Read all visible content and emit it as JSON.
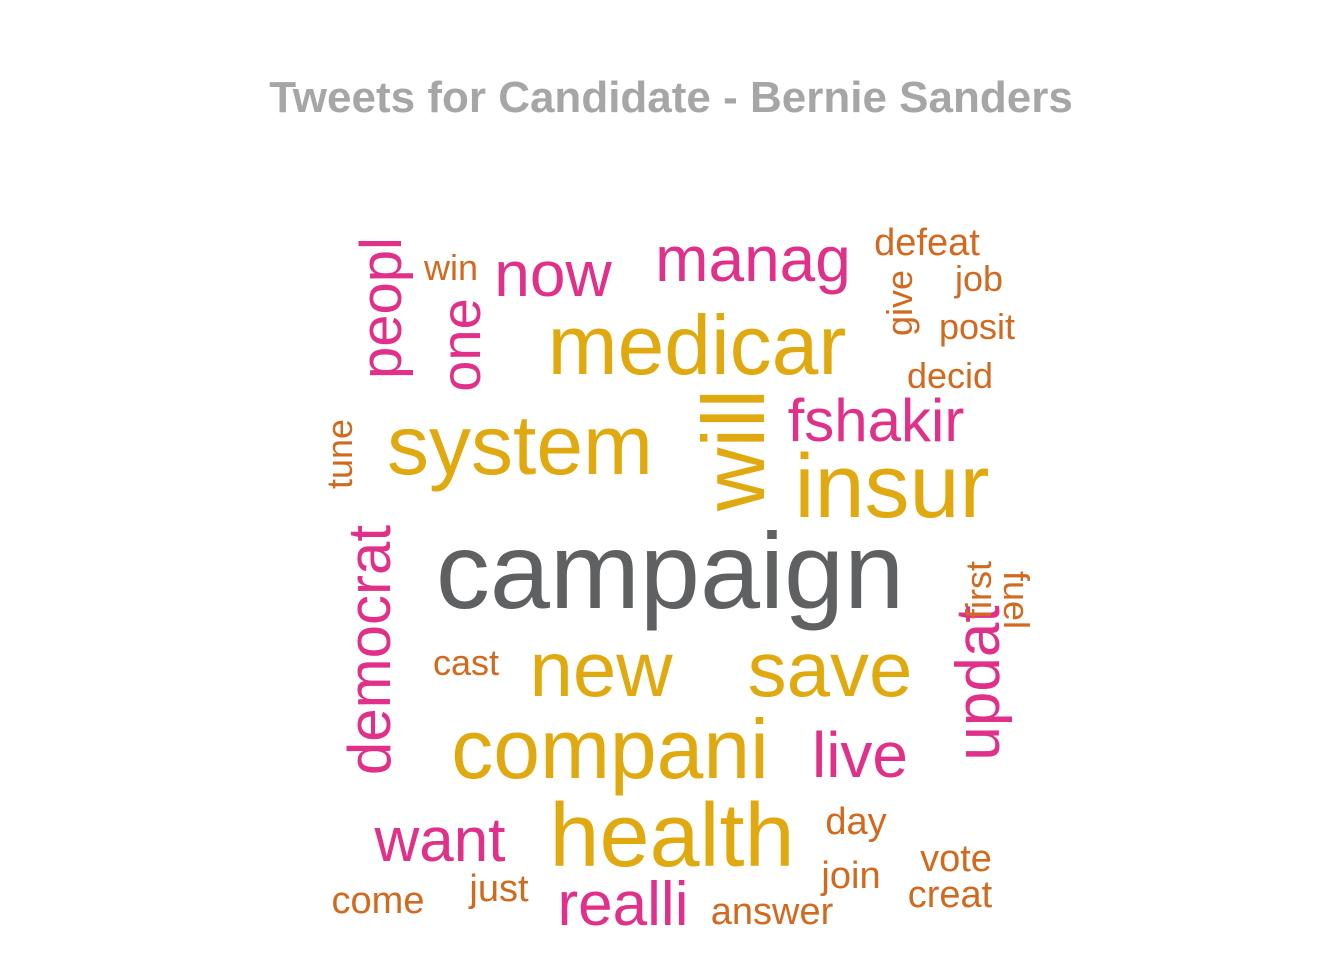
{
  "colors": {
    "title": "#a6a6a6",
    "dark": "#5f6062",
    "gold": "#e0a90f",
    "pink": "#e0308a",
    "orange": "#d2691e"
  },
  "chart_data": {
    "type": "wordcloud",
    "title": "Tweets for Candidate - Bernie Sanders",
    "words": [
      {
        "text": "campaign",
        "color": "dark",
        "rotate": 0
      },
      {
        "text": "medicar",
        "color": "gold",
        "rotate": 0
      },
      {
        "text": "system",
        "color": "gold",
        "rotate": 0
      },
      {
        "text": "insur",
        "color": "gold",
        "rotate": 0
      },
      {
        "text": "will",
        "color": "gold",
        "rotate": -90
      },
      {
        "text": "new",
        "color": "gold",
        "rotate": 0
      },
      {
        "text": "save",
        "color": "gold",
        "rotate": 0
      },
      {
        "text": "compani",
        "color": "gold",
        "rotate": 0
      },
      {
        "text": "health",
        "color": "gold",
        "rotate": 0
      },
      {
        "text": "manag",
        "color": "pink",
        "rotate": 0
      },
      {
        "text": "now",
        "color": "pink",
        "rotate": 0
      },
      {
        "text": "peopl",
        "color": "pink",
        "rotate": -90
      },
      {
        "text": "one",
        "color": "pink",
        "rotate": -90
      },
      {
        "text": "fshakir",
        "color": "pink",
        "rotate": 0
      },
      {
        "text": "democrat",
        "color": "pink",
        "rotate": -90
      },
      {
        "text": "updat",
        "color": "pink",
        "rotate": -90
      },
      {
        "text": "live",
        "color": "pink",
        "rotate": 0
      },
      {
        "text": "want",
        "color": "pink",
        "rotate": 0
      },
      {
        "text": "realli",
        "color": "pink",
        "rotate": 0
      },
      {
        "text": "win",
        "color": "orange",
        "rotate": 0
      },
      {
        "text": "defeat",
        "color": "orange",
        "rotate": 0
      },
      {
        "text": "job",
        "color": "orange",
        "rotate": 0
      },
      {
        "text": "give",
        "color": "orange",
        "rotate": -90
      },
      {
        "text": "posit",
        "color": "orange",
        "rotate": 0
      },
      {
        "text": "decid",
        "color": "orange",
        "rotate": 0
      },
      {
        "text": "tune",
        "color": "orange",
        "rotate": -90
      },
      {
        "text": "first",
        "color": "orange",
        "rotate": -90
      },
      {
        "text": "fuel",
        "color": "orange",
        "rotate": 90
      },
      {
        "text": "cast",
        "color": "orange",
        "rotate": 0
      },
      {
        "text": "day",
        "color": "orange",
        "rotate": 0
      },
      {
        "text": "vote",
        "color": "orange",
        "rotate": 0
      },
      {
        "text": "join",
        "color": "orange",
        "rotate": 0
      },
      {
        "text": "creat",
        "color": "orange",
        "rotate": 0
      },
      {
        "text": "come",
        "color": "orange",
        "rotate": 0
      },
      {
        "text": "just",
        "color": "orange",
        "rotate": 0
      },
      {
        "text": "answer",
        "color": "orange",
        "rotate": 0
      }
    ]
  }
}
